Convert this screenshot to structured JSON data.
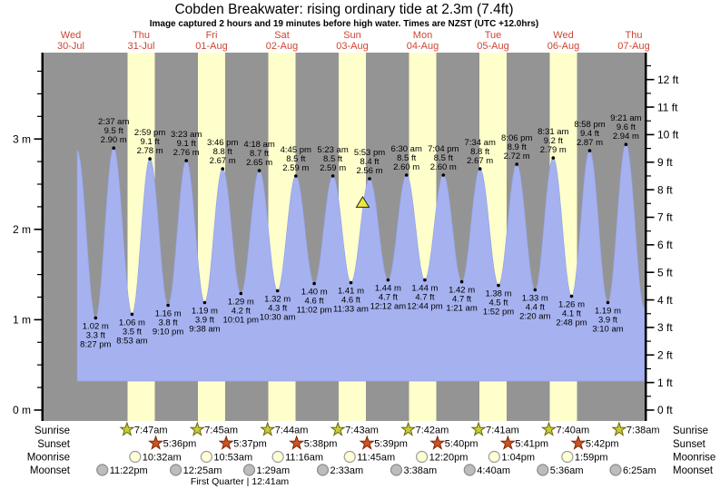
{
  "title": "Cobden Breakwater: rising  ordinary tide at 2.3m (7.4ft)",
  "subtitle": "Image captured 2 hours and 19 minutes before high water. Times are NZST (UTC +12.0hrs)",
  "colors": {
    "plot_bg": "#949494",
    "day_stripe": "#ffffcc",
    "tide_fill": "#a6b2f0",
    "tide_edge": "#96a5e8",
    "day_label": "#cf4332",
    "axis": "#000000",
    "label_text": "#000000",
    "sunrise_star_fill": "#c9cc33",
    "sunrise_star_stroke": "#66660e",
    "sunset_star_fill": "#cc5420",
    "sunset_star_stroke": "#7d2606",
    "moonrise_fill": "#ffffd6",
    "moonrise_stroke": "#9a9a9a",
    "moonset_fill": "#bcbcbc",
    "moonset_stroke": "#8a8a8a",
    "marker_fill": "#ece73e"
  },
  "chart_data": {
    "type": "area",
    "unit_left": "m",
    "unit_right": "ft",
    "ylim_m": [
      0,
      3.94
    ],
    "grid": false,
    "days": [
      {
        "name": "Wed",
        "date": "30-Jul",
        "stripe": false
      },
      {
        "name": "Thu",
        "date": "31-Jul",
        "stripe": true
      },
      {
        "name": "Fri",
        "date": "01-Aug",
        "stripe": true
      },
      {
        "name": "Sat",
        "date": "02-Aug",
        "stripe": true
      },
      {
        "name": "Sun",
        "date": "03-Aug",
        "stripe": true
      },
      {
        "name": "Mon",
        "date": "04-Aug",
        "stripe": true
      },
      {
        "name": "Tue",
        "date": "05-Aug",
        "stripe": true
      },
      {
        "name": "Wed",
        "date": "06-Aug",
        "stripe": true
      },
      {
        "name": "Thu",
        "date": "07-Aug",
        "stripe": false
      }
    ],
    "yticks_m": [
      {
        "value": 3,
        "label": "3 m"
      },
      {
        "value": 2,
        "label": "2 m"
      },
      {
        "value": 1,
        "label": "1 m"
      },
      {
        "value": 0,
        "label": "0 m"
      }
    ],
    "yticks_ft": [
      {
        "value": 12,
        "label": "12 ft"
      },
      {
        "value": 11,
        "label": "11 ft"
      },
      {
        "value": 10,
        "label": "10 ft"
      },
      {
        "value": 9,
        "label": "9 ft"
      },
      {
        "value": 8,
        "label": "8 ft"
      },
      {
        "value": 7,
        "label": "7 ft"
      },
      {
        "value": 6,
        "label": "6 ft"
      },
      {
        "value": 5,
        "label": "5 ft"
      },
      {
        "value": 4,
        "label": "4 ft"
      },
      {
        "value": 3,
        "label": "3 ft"
      },
      {
        "value": 2,
        "label": "2 ft"
      },
      {
        "value": 1,
        "label": "1 ft"
      },
      {
        "value": 0,
        "label": "0 ft"
      }
    ],
    "tide_events": [
      {
        "day": 0,
        "type": "high",
        "labeled": false,
        "hour": 14.2,
        "m": 2.87
      },
      {
        "day": 0,
        "type": "low",
        "time": "8:27 pm",
        "ft": "3.3 ft",
        "m_label": "1.02 m",
        "m": 1.02
      },
      {
        "day": 1,
        "type": "high",
        "time": "2:37 am",
        "ft": "9.5 ft",
        "m_label": "2.90 m",
        "m": 2.9
      },
      {
        "day": 1,
        "type": "low",
        "time": "8:53 am",
        "ft": "3.5 ft",
        "m_label": "1.06 m",
        "m": 1.06
      },
      {
        "day": 1,
        "type": "high",
        "time": "2:59 pm",
        "ft": "9.1 ft",
        "m_label": "2.78 m",
        "m": 2.78
      },
      {
        "day": 1,
        "type": "low",
        "time": "9:10 pm",
        "ft": "3.8 ft",
        "m_label": "1.16 m",
        "m": 1.16
      },
      {
        "day": 2,
        "type": "high",
        "time": "3:23 am",
        "ft": "9.1 ft",
        "m_label": "2.76 m",
        "m": 2.76
      },
      {
        "day": 2,
        "type": "low",
        "time": "9:38 am",
        "ft": "3.9 ft",
        "m_label": "1.19 m",
        "m": 1.19
      },
      {
        "day": 2,
        "type": "high",
        "time": "3:46 pm",
        "ft": "8.8 ft",
        "m_label": "2.67 m",
        "m": 2.67
      },
      {
        "day": 2,
        "type": "low",
        "time": "10:01 pm",
        "ft": "4.2 ft",
        "m_label": "1.29 m",
        "m": 1.29
      },
      {
        "day": 3,
        "type": "high",
        "time": "4:18 am",
        "ft": "8.7 ft",
        "m_label": "2.65 m",
        "m": 2.65
      },
      {
        "day": 3,
        "type": "low",
        "time": "10:30 am",
        "ft": "4.3 ft",
        "m_label": "1.32 m",
        "m": 1.32
      },
      {
        "day": 3,
        "type": "high",
        "time": "4:45 pm",
        "ft": "8.5 ft",
        "m_label": "2.59 m",
        "m": 2.59
      },
      {
        "day": 3,
        "type": "low",
        "time": "11:02 pm",
        "ft": "4.6 ft",
        "m_label": "1.40 m",
        "m": 1.4
      },
      {
        "day": 4,
        "type": "high",
        "time": "5:23 am",
        "ft": "8.5 ft",
        "m_label": "2.59 m",
        "m": 2.59
      },
      {
        "day": 4,
        "type": "low",
        "time": "11:33 am",
        "ft": "4.6 ft",
        "m_label": "1.41 m",
        "m": 1.41
      },
      {
        "day": 4,
        "type": "high",
        "time": "5:53 pm",
        "ft": "8.4 ft",
        "m_label": "2.56 m",
        "m": 2.56
      },
      {
        "day": 5,
        "type": "low",
        "time": "12:12 am",
        "ft": "4.7 ft",
        "m_label": "1.44 m",
        "m": 1.44
      },
      {
        "day": 5,
        "type": "high",
        "time": "6:30 am",
        "ft": "8.5 ft",
        "m_label": "2.60 m",
        "m": 2.6
      },
      {
        "day": 5,
        "type": "low",
        "time": "12:44 pm",
        "ft": "4.7 ft",
        "m_label": "1.44 m",
        "m": 1.44
      },
      {
        "day": 5,
        "type": "high",
        "time": "7:04 pm",
        "ft": "8.5 ft",
        "m_label": "2.60 m",
        "m": 2.6
      },
      {
        "day": 6,
        "type": "low",
        "time": "1:21 am",
        "ft": "4.7 ft",
        "m_label": "1.42 m",
        "m": 1.42
      },
      {
        "day": 6,
        "type": "high",
        "time": "7:34 am",
        "ft": "8.8 ft",
        "m_label": "2.67 m",
        "m": 2.67
      },
      {
        "day": 6,
        "type": "low",
        "time": "1:52 pm",
        "ft": "4.5 ft",
        "m_label": "1.38 m",
        "m": 1.38
      },
      {
        "day": 6,
        "type": "high",
        "time": "8:06 pm",
        "ft": "8.9 ft",
        "m_label": "2.72 m",
        "m": 2.72
      },
      {
        "day": 7,
        "type": "low",
        "time": "2:20 am",
        "ft": "4.4 ft",
        "m_label": "1.33 m",
        "m": 1.33
      },
      {
        "day": 7,
        "type": "high",
        "time": "8:31 am",
        "ft": "9.2 ft",
        "m_label": "2.79 m",
        "m": 2.79
      },
      {
        "day": 7,
        "type": "low",
        "time": "2:48 pm",
        "ft": "4.1 ft",
        "m_label": "1.26 m",
        "m": 1.26
      },
      {
        "day": 7,
        "type": "high",
        "time": "8:58 pm",
        "ft": "9.4 ft",
        "m_label": "2.87 m",
        "m": 2.87
      },
      {
        "day": 8,
        "type": "low",
        "time": "3:10 am",
        "ft": "3.9 ft",
        "m_label": "1.19 m",
        "m": 1.19
      },
      {
        "day": 8,
        "type": "high",
        "time": "9:21 am",
        "ft": "9.6 ft",
        "m_label": "2.94 m",
        "m": 2.94
      },
      {
        "day": 8,
        "type": "low",
        "labeled": false,
        "hour": 15.6,
        "m": 1.13
      }
    ],
    "current_marker": {
      "icon": "triangle-up-icon",
      "day": 4,
      "hour": 15.57,
      "level_m": 2.3
    }
  },
  "astro": {
    "rows": [
      {
        "key": "sunrise",
        "label": "Sunrise",
        "icon": "sunrise-star-icon",
        "events": [
          {
            "day": 1,
            "time": "7:47am"
          },
          {
            "day": 2,
            "time": "7:45am"
          },
          {
            "day": 3,
            "time": "7:44am"
          },
          {
            "day": 4,
            "time": "7:43am"
          },
          {
            "day": 5,
            "time": "7:42am"
          },
          {
            "day": 6,
            "time": "7:41am"
          },
          {
            "day": 7,
            "time": "7:40am"
          },
          {
            "day": 8,
            "time": "7:38am"
          }
        ]
      },
      {
        "key": "sunset",
        "label": "Sunset",
        "icon": "sunset-star-icon",
        "events": [
          {
            "day": 1,
            "time": "5:36pm"
          },
          {
            "day": 2,
            "time": "5:37pm"
          },
          {
            "day": 3,
            "time": "5:38pm"
          },
          {
            "day": 4,
            "time": "5:39pm"
          },
          {
            "day": 5,
            "time": "5:40pm"
          },
          {
            "day": 6,
            "time": "5:41pm"
          },
          {
            "day": 7,
            "time": "5:42pm"
          }
        ]
      },
      {
        "key": "moonrise",
        "label": "Moonrise",
        "icon": "moonrise-circle-icon",
        "events": [
          {
            "day": 1,
            "time": "10:32am"
          },
          {
            "day": 2,
            "time": "10:53am"
          },
          {
            "day": 3,
            "time": "11:16am"
          },
          {
            "day": 4,
            "time": "11:45am"
          },
          {
            "day": 5,
            "time": "12:20pm"
          },
          {
            "day": 6,
            "time": "1:04pm"
          },
          {
            "day": 7,
            "time": "1:59pm"
          }
        ]
      },
      {
        "key": "moonset",
        "label": "Moonset",
        "icon": "moonset-circle-icon",
        "events": [
          {
            "day": 0,
            "time": "11:22pm"
          },
          {
            "day": 2,
            "time": "12:25am"
          },
          {
            "day": 3,
            "time": "1:29am"
          },
          {
            "day": 4,
            "time": "2:33am"
          },
          {
            "day": 5,
            "time": "3:38am"
          },
          {
            "day": 6,
            "time": "4:40am"
          },
          {
            "day": 7,
            "time": "5:36am"
          },
          {
            "day": 8,
            "time": "6:25am"
          }
        ]
      }
    ],
    "moon_phase": "First Quarter | 12:41am"
  }
}
